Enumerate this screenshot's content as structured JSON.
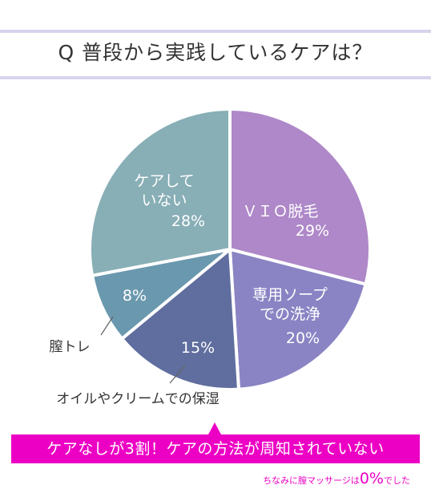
{
  "title": "Q 普段から実践しているケアは？",
  "chart_data": {
    "type": "pie",
    "title": "Q 普段から実践しているケアは？",
    "unit": "%",
    "slices": [
      {
        "label_lines": [
          "ＶＩＯ脱毛"
        ],
        "value": 29,
        "value_label": "29%",
        "color": "#ae88c8",
        "label_pos": "inside"
      },
      {
        "label_lines": [
          "専用ソープ",
          "での洗浄"
        ],
        "value": 20,
        "value_label": "20%",
        "color": "#8a84c4",
        "label_pos": "inside"
      },
      {
        "label_lines": [
          "オイルやクリームでの保湿"
        ],
        "value": 15,
        "value_label": "15%",
        "color": "#5f6e9e",
        "label_pos": "outside"
      },
      {
        "label_lines": [
          "膣トレ"
        ],
        "value": 8,
        "value_label": "8%",
        "color": "#6a98ae",
        "label_pos": "outside"
      },
      {
        "label_lines": [
          "ケアして",
          "いない"
        ],
        "value": 28,
        "value_label": "28%",
        "color": "#88aeb6",
        "label_pos": "inside"
      }
    ]
  },
  "banner": {
    "text": "ケアなしが3割！ケアの方法が周知されていない",
    "color": "#ec00c4"
  },
  "footnote": {
    "prefix": "ちなみに膣マッサージは",
    "value": "0%",
    "suffix": "でした"
  }
}
